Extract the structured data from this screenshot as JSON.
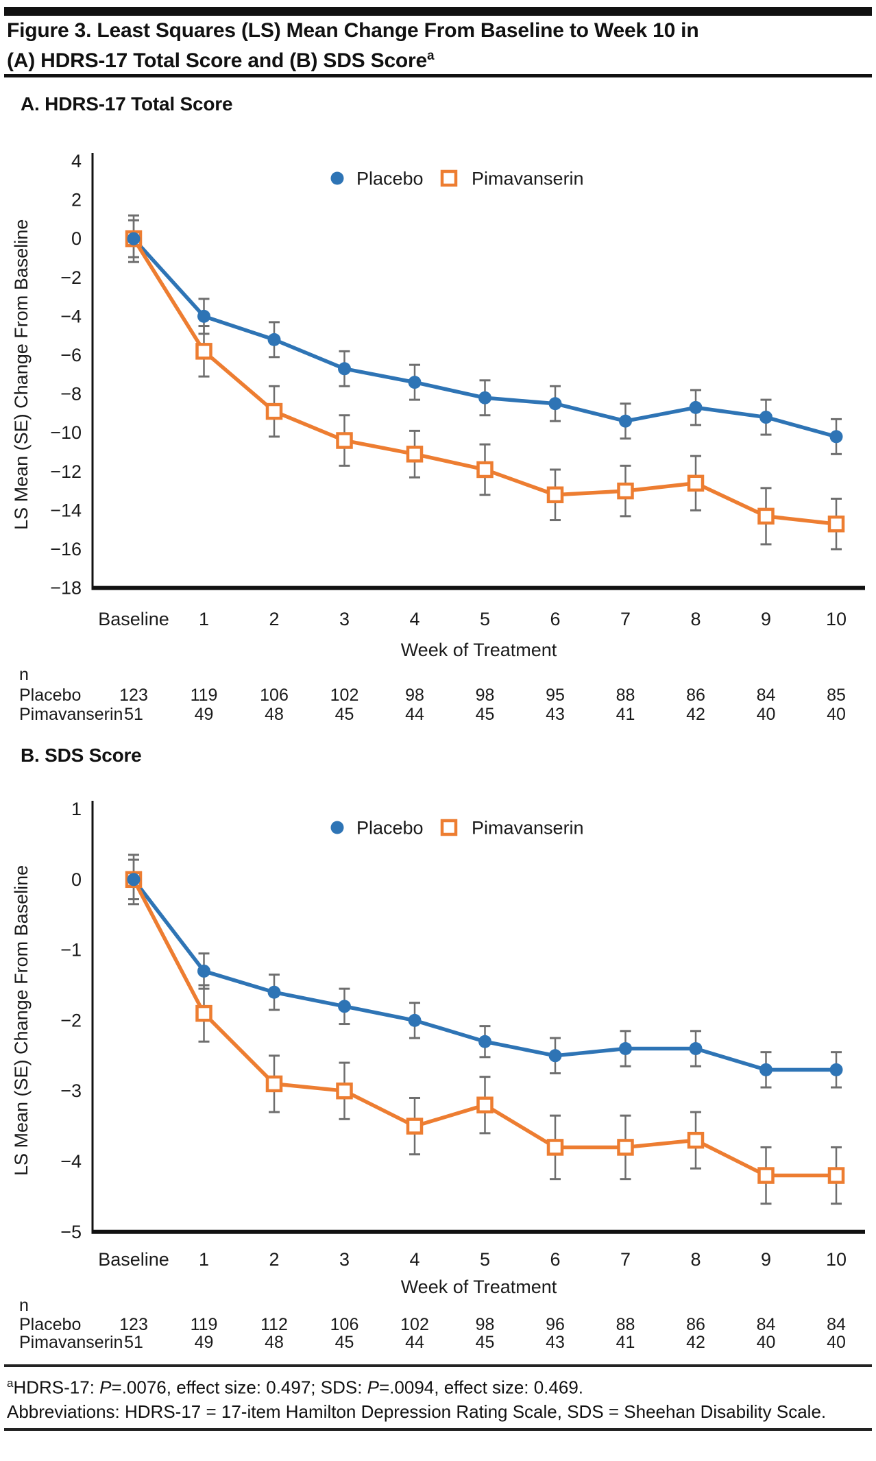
{
  "title": {
    "line1": "Figure 3. Least Squares (LS) Mean Change From Baseline to Week 10 in",
    "line2": "(A) HDRS-17 Total Score and (B) SDS Score",
    "superscript": "a"
  },
  "colors": {
    "placebo_blue": "#2E74B5",
    "pimavanserin_orange": "#ED7D31",
    "error_bar_gray": "#6E6E6E",
    "axis_black": "#111111"
  },
  "chart_data": [
    {
      "id": "hdrs17",
      "type": "line",
      "section_label": "A. HDRS-17 Total Score",
      "xlabel": "Week of Treatment",
      "ylabel": "LS Mean (SE) Change From Baseline",
      "x_categories": [
        "Baseline",
        "1",
        "2",
        "3",
        "4",
        "5",
        "6",
        "7",
        "8",
        "9",
        "10"
      ],
      "ylim": [
        -18,
        4
      ],
      "y_ticks": [
        4,
        2,
        0,
        -2,
        -4,
        -6,
        -8,
        -10,
        -12,
        -14,
        -16,
        -18
      ],
      "y_tick_labels": [
        "4",
        "2",
        "0",
        "−2",
        "−4",
        "−6",
        "−8",
        "−10",
        "−12",
        "−14",
        "−16",
        "−18"
      ],
      "grid": false,
      "legend_position": "top-center",
      "series": [
        {
          "name": "Placebo",
          "marker": "filled-circle",
          "color": "#2E74B5",
          "values": [
            0,
            -4.0,
            -5.2,
            -6.7,
            -7.4,
            -8.2,
            -8.5,
            -9.4,
            -8.7,
            -9.2,
            -10.2
          ],
          "se": [
            1.2,
            0.9,
            0.9,
            0.9,
            0.9,
            0.9,
            0.9,
            0.9,
            0.9,
            0.9,
            0.9
          ]
        },
        {
          "name": "Pimavanserin",
          "marker": "open-square",
          "color": "#ED7D31",
          "values": [
            0,
            -5.8,
            -8.9,
            -10.4,
            -11.1,
            -11.9,
            -13.2,
            -13.0,
            -12.6,
            -14.3,
            -14.7
          ],
          "se": [
            0.95,
            1.3,
            1.3,
            1.3,
            1.2,
            1.3,
            1.3,
            1.3,
            1.4,
            1.45,
            1.3
          ]
        }
      ],
      "n_table": {
        "header": "n",
        "rows": [
          {
            "label": "Placebo",
            "values": [
              123,
              119,
              106,
              102,
              98,
              98,
              95,
              88,
              86,
              84,
              85
            ]
          },
          {
            "label": "Pimavanserin",
            "values": [
              51,
              49,
              48,
              45,
              44,
              45,
              43,
              41,
              42,
              40,
              40
            ]
          }
        ]
      }
    },
    {
      "id": "sds",
      "type": "line",
      "section_label": "B. SDS Score",
      "xlabel": "Week of Treatment",
      "ylabel": "LS Mean (SE) Change From Baseline",
      "x_categories": [
        "Baseline",
        "1",
        "2",
        "3",
        "4",
        "5",
        "6",
        "7",
        "8",
        "9",
        "10"
      ],
      "ylim": [
        -5,
        1
      ],
      "y_ticks": [
        1,
        0,
        -1,
        -2,
        -3,
        -4,
        -5
      ],
      "y_tick_labels": [
        "1",
        "0",
        "−1",
        "−2",
        "−3",
        "−4",
        "−5"
      ],
      "grid": false,
      "legend_position": "top-center",
      "series": [
        {
          "name": "Placebo",
          "marker": "filled-circle",
          "color": "#2E74B5",
          "values": [
            0,
            -1.3,
            -1.6,
            -1.8,
            -2.0,
            -2.3,
            -2.5,
            -2.4,
            -2.4,
            -2.7,
            -2.7
          ],
          "se": [
            0.35,
            0.25,
            0.25,
            0.25,
            0.25,
            0.22,
            0.25,
            0.25,
            0.25,
            0.25,
            0.25
          ]
        },
        {
          "name": "Pimavanserin",
          "marker": "open-square",
          "color": "#ED7D31",
          "values": [
            0,
            -1.9,
            -2.9,
            -3.0,
            -3.5,
            -3.2,
            -3.8,
            -3.8,
            -3.7,
            -4.2,
            -4.2
          ],
          "se": [
            0.28,
            0.4,
            0.4,
            0.4,
            0.4,
            0.4,
            0.45,
            0.45,
            0.4,
            0.4,
            0.4
          ]
        }
      ],
      "n_table": {
        "header": "n",
        "rows": [
          {
            "label": "Placebo",
            "values": [
              123,
              119,
              112,
              106,
              102,
              98,
              96,
              88,
              86,
              84,
              84
            ]
          },
          {
            "label": "Pimavanserin",
            "values": [
              51,
              49,
              48,
              45,
              44,
              45,
              43,
              41,
              42,
              40,
              40
            ]
          }
        ]
      }
    }
  ],
  "footnote": {
    "superscript": "a",
    "segment1": "HDRS-17: ",
    "p_italic": "P",
    "segment2": "=.0076, effect size: 0.497; SDS: ",
    "segment3": "=.0094, effect size: 0.469.",
    "abbreviations": "Abbreviations: HDRS-17 = 17-item Hamilton Depression Rating Scale, SDS = Sheehan Disability Scale."
  }
}
